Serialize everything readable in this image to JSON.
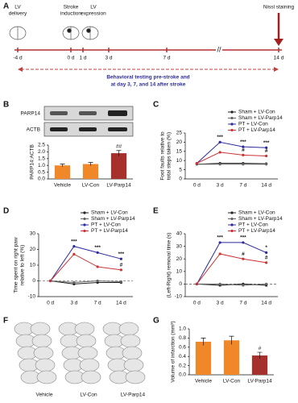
{
  "panel_labels": [
    "A",
    "B",
    "C",
    "D",
    "E",
    "F",
    "G"
  ],
  "timeline": {
    "top_labels": [
      [
        "LV",
        "delivery"
      ],
      [
        "Stroke",
        "induction"
      ],
      [
        "LV",
        "expression"
      ]
    ],
    "arrow_label": "Nissl staining",
    "ticks": [
      "-4 d",
      "0 d",
      "1 d",
      "3 d",
      "7 d",
      "14 d"
    ],
    "caption": [
      "Behavioral testing pre-stroke and",
      "at day 3, 7, and 14 after stroke"
    ]
  },
  "blot": {
    "rows": [
      "PARP14",
      "ACTB"
    ]
  },
  "slices": {
    "groups": [
      "Vehicle",
      "LV-Con",
      "LV-Parp14"
    ]
  },
  "chart_data": [
    {
      "type": "bar",
      "y_label": [
        "PARP14:ACTB"
      ],
      "categories": [
        "Vehicle",
        "LV-Con",
        "LV-Parp14"
      ],
      "values": [
        1.0,
        1.1,
        1.9
      ],
      "errors": [
        0.1,
        0.12,
        0.2
      ],
      "colors": [
        "#f0882a",
        "#f0882a",
        "#a5302c"
      ],
      "ylim": [
        0,
        2.5
      ],
      "yticks": [
        {
          "value": 0,
          "label": "0.0"
        },
        {
          "value": 0.5,
          "label": "0.5"
        },
        {
          "value": 1,
          "label": "1.0"
        },
        {
          "value": 1.5,
          "label": "1.5"
        },
        {
          "value": 2,
          "label": "2.0"
        },
        {
          "value": 2.5,
          "label": "2.5"
        }
      ],
      "annotations": [
        {
          "text": "##",
          "x": "LV-Parp14"
        }
      ]
    },
    {
      "type": "line",
      "y_label": [
        "Foot faults relative to",
        "total steps taken (%)"
      ],
      "categories": [
        "0 d",
        "3 d",
        "7 d",
        "14 d"
      ],
      "ylim": [
        0,
        25
      ],
      "yticks": [
        0,
        5,
        10,
        15,
        20,
        25
      ],
      "zero_line": false,
      "series": [
        {
          "name": "Sham + LV-Con",
          "color": "#222222",
          "values": [
            8,
            8.5,
            8.5,
            8.3
          ]
        },
        {
          "name": "Sham + LV-Parp14",
          "color": "#666666",
          "values": [
            8,
            8,
            8,
            8
          ]
        },
        {
          "name": "PT + LV-Con",
          "color": "#2b2b9e",
          "values": [
            8.5,
            20,
            17.5,
            17
          ]
        },
        {
          "name": "PT + LV-Parp14",
          "color": "#cc3333",
          "values": [
            8.5,
            14.5,
            13,
            12.5
          ]
        }
      ],
      "annotations": [
        {
          "text": "***",
          "x": "3 d",
          "series": "PT + LV-Con"
        },
        {
          "text": "***",
          "x": "7 d",
          "series": "PT + LV-Con"
        },
        {
          "text": "***",
          "x": "14 d",
          "series": "PT + LV-Con"
        },
        {
          "text": "#",
          "x": "7 d",
          "series": "PT + LV-Parp14"
        },
        {
          "text": "#",
          "x": "14 d",
          "series": "PT + LV-Parp14"
        }
      ]
    },
    {
      "type": "line",
      "y_label": [
        "Time spent on right paw",
        "relative to left (%)"
      ],
      "categories": [
        "0 d",
        "3 d",
        "7 d",
        "14 d"
      ],
      "ylim": [
        -10,
        30
      ],
      "yticks": [
        -10,
        0,
        10,
        20,
        30
      ],
      "zero_line": true,
      "series": [
        {
          "name": "Sham + LV-Con",
          "color": "#222222",
          "values": [
            0,
            -2,
            -1,
            -1
          ]
        },
        {
          "name": "Sham + LV-Parp14",
          "color": "#666666",
          "values": [
            0,
            -1,
            0,
            -0.5
          ]
        },
        {
          "name": "PT + LV-Con",
          "color": "#2b2b9e",
          "values": [
            0,
            22,
            18,
            14
          ]
        },
        {
          "name": "PT + LV-Parp14",
          "color": "#cc3333",
          "values": [
            0,
            17,
            9,
            7
          ]
        }
      ],
      "annotations": [
        {
          "text": "***",
          "x": "3 d",
          "series": "PT + LV-Con"
        },
        {
          "text": "***",
          "x": "7 d",
          "series": "PT + LV-Con"
        },
        {
          "text": "***",
          "x": "14 d",
          "series": "PT + LV-Con"
        },
        {
          "text": "#",
          "x": "14 d",
          "series": "PT + LV-Parp14"
        }
      ]
    },
    {
      "type": "line",
      "y_label": [
        "(Left-Right) removal time (s)"
      ],
      "categories": [
        "0 d",
        "3 d",
        "7 d",
        "14 d"
      ],
      "ylim": [
        -10,
        40
      ],
      "yticks": [
        -10,
        0,
        10,
        20,
        30,
        40
      ],
      "zero_line": true,
      "series": [
        {
          "name": "Sham + LV-Con",
          "color": "#222222",
          "values": [
            0,
            -1,
            0,
            -1
          ]
        },
        {
          "name": "Sham + LV-Parp14",
          "color": "#666666",
          "values": [
            0,
            0,
            -1,
            0
          ]
        },
        {
          "name": "PT + LV-Con",
          "color": "#2b2b9e",
          "values": [
            0,
            33,
            33,
            25
          ]
        },
        {
          "name": "PT + LV-Parp14",
          "color": "#cc3333",
          "values": [
            0,
            24,
            20,
            17
          ]
        }
      ],
      "annotations": [
        {
          "text": "***",
          "x": "3 d",
          "series": "PT + LV-Con"
        },
        {
          "text": "***",
          "x": "7 d",
          "series": "PT + LV-Con"
        },
        {
          "text": "*",
          "x": "14 d",
          "series": "PT + LV-Con"
        },
        {
          "text": "#",
          "x": "7 d",
          "series": "PT + LV-Parp14"
        },
        {
          "text": "#",
          "x": "14 d",
          "series": "PT + LV-Parp14"
        }
      ]
    },
    {
      "type": "bar",
      "y_label": [
        "Volume of infarction (mm³)"
      ],
      "categories": [
        "Vehicle",
        "LV-Con",
        "LV-Parp14"
      ],
      "values": [
        0.72,
        0.75,
        0.42
      ],
      "errors": [
        0.08,
        0.09,
        0.07
      ],
      "colors": [
        "#f0882a",
        "#f0882a",
        "#a5302c"
      ],
      "ylim": [
        0,
        1.0
      ],
      "yticks": [
        {
          "value": 0,
          "label": "0.0"
        },
        {
          "value": 0.2,
          "label": "0.2"
        },
        {
          "value": 0.4,
          "label": "0.4"
        },
        {
          "value": 0.6,
          "label": "0.6"
        },
        {
          "value": 0.8,
          "label": "0.8"
        },
        {
          "value": 1.0,
          "label": "1.0"
        }
      ],
      "annotations": [
        {
          "text": "#",
          "x": "LV-Parp14"
        }
      ]
    }
  ]
}
